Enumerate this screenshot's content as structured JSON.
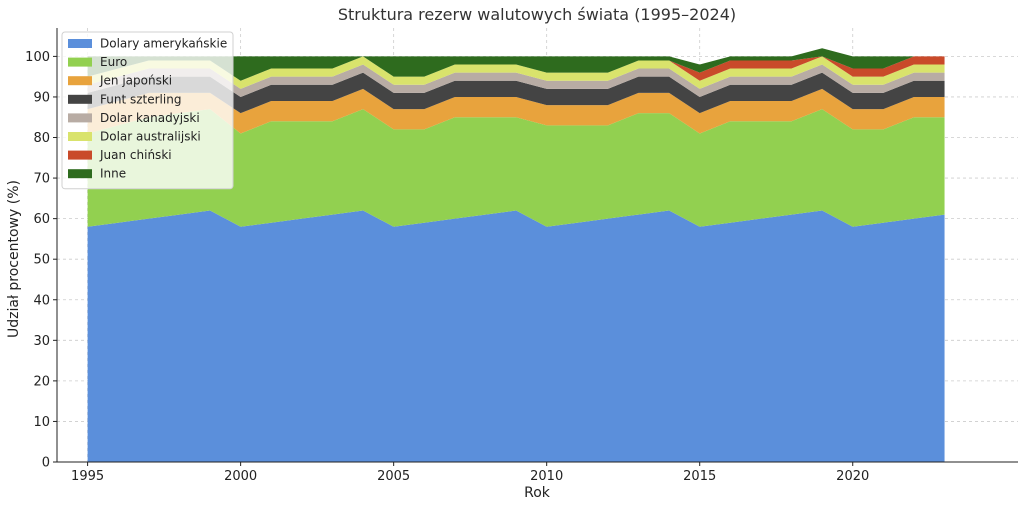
{
  "chart_data": {
    "type": "area",
    "title": "Struktura rezerw walutowych świata (1995–2024)",
    "xlabel": "Rok",
    "ylabel": "Udział procentowy (%)",
    "xlim": [
      1994,
      2025.4
    ],
    "ylim": [
      0,
      107
    ],
    "xticks": [
      1995,
      2000,
      2005,
      2010,
      2015,
      2020
    ],
    "yticks": [
      0,
      10,
      20,
      30,
      40,
      50,
      60,
      70,
      80,
      90,
      100
    ],
    "grid": true,
    "legend_position": "top-left",
    "x": [
      1995,
      1996,
      1997,
      1998,
      1999,
      2000,
      2001,
      2002,
      2003,
      2004,
      2005,
      2006,
      2007,
      2008,
      2009,
      2010,
      2011,
      2012,
      2013,
      2014,
      2015,
      2016,
      2017,
      2018,
      2019,
      2020,
      2021,
      2022,
      2023
    ],
    "series": [
      {
        "name": "Dolary amerykańskie",
        "color": "#5b8fdb",
        "values": [
          58,
          59,
          60,
          61,
          62,
          58,
          59,
          60,
          61,
          62,
          58,
          59,
          60,
          61,
          62,
          58,
          59,
          60,
          61,
          62,
          58,
          59,
          60,
          61,
          62,
          58,
          59,
          60,
          61
        ]
      },
      {
        "name": "Euro",
        "color": "#92d050",
        "values": [
          23,
          24,
          25,
          25,
          25,
          23,
          25,
          24,
          23,
          25,
          24,
          23,
          25,
          24,
          23,
          25,
          24,
          23,
          25,
          24,
          23,
          25,
          24,
          23,
          25,
          24,
          23,
          25,
          24
        ]
      },
      {
        "name": "Jen japoński",
        "color": "#e8a33d",
        "values": [
          6,
          6,
          6,
          5,
          4,
          5,
          5,
          5,
          5,
          5,
          5,
          5,
          5,
          5,
          5,
          5,
          5,
          5,
          5,
          5,
          5,
          5,
          5,
          5,
          5,
          5,
          5,
          5,
          5
        ]
      },
      {
        "name": "Funt szterling",
        "color": "#444444",
        "values": [
          4,
          4,
          4,
          4,
          4,
          4,
          4,
          4,
          4,
          4,
          4,
          4,
          4,
          4,
          4,
          4,
          4,
          4,
          4,
          4,
          4,
          4,
          4,
          4,
          4,
          4,
          4,
          4,
          4
        ]
      },
      {
        "name": "Dolar kanadyjski",
        "color": "#b8aca4",
        "values": [
          2,
          2,
          2,
          2,
          2,
          2,
          2,
          2,
          2,
          2,
          2,
          2,
          2,
          2,
          2,
          2,
          2,
          2,
          2,
          2,
          2,
          2,
          2,
          2,
          2,
          2,
          2,
          2,
          2
        ]
      },
      {
        "name": "Dolar australijski",
        "color": "#d9e36c",
        "values": [
          2,
          2,
          2,
          2,
          2,
          2,
          2,
          2,
          2,
          2,
          2,
          2,
          2,
          2,
          2,
          2,
          2,
          2,
          2,
          2,
          2,
          2,
          2,
          2,
          2,
          2,
          2,
          2,
          2
        ]
      },
      {
        "name": "Juan chiński",
        "color": "#c94a2a",
        "values": [
          0,
          0,
          0,
          0,
          0,
          0,
          0,
          0,
          0,
          0,
          0,
          0,
          0,
          0,
          0,
          0,
          0,
          0,
          0,
          0,
          2,
          2,
          2,
          2,
          0,
          2,
          2,
          2,
          2
        ]
      },
      {
        "name": "Inne",
        "color": "#2e6b1e",
        "values": [
          5,
          3,
          1,
          1,
          1,
          6,
          3,
          3,
          3,
          0,
          5,
          5,
          2,
          2,
          2,
          4,
          4,
          4,
          1,
          1,
          2,
          1,
          1,
          1,
          2,
          3,
          3,
          0,
          0
        ]
      }
    ]
  }
}
